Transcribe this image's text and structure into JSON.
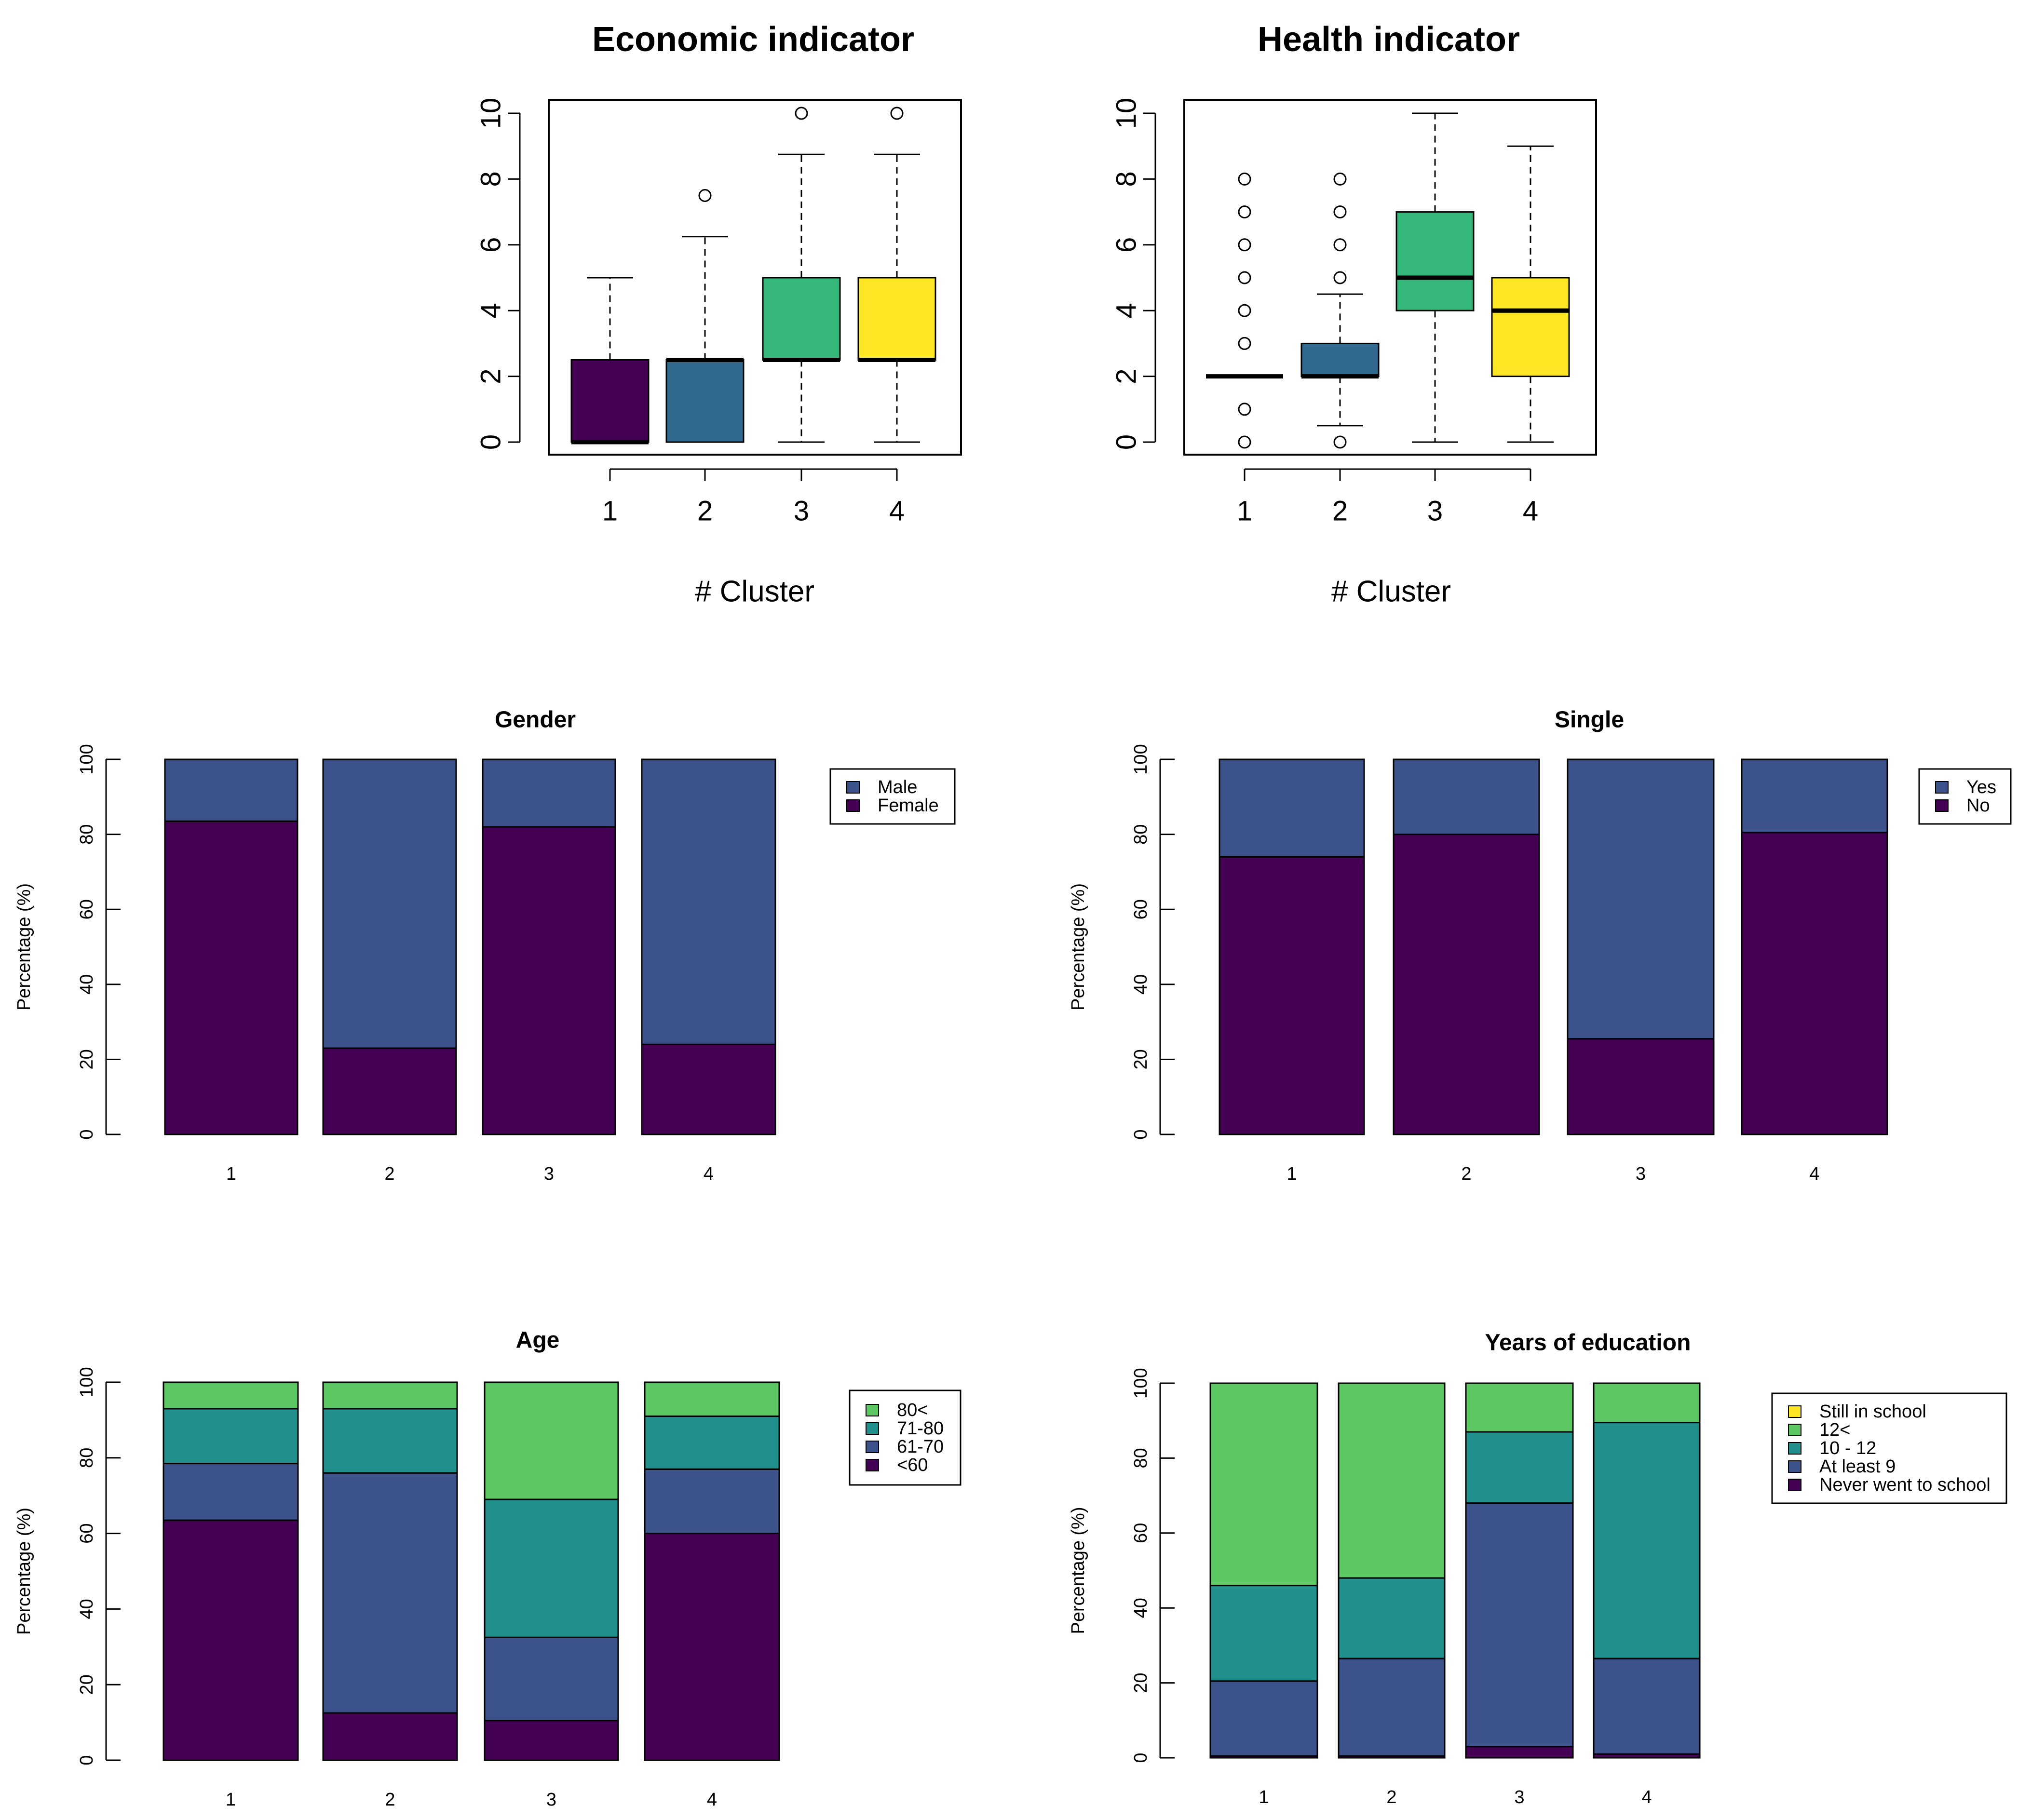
{
  "chart_data": [
    {
      "id": "economic",
      "type": "boxplot",
      "title": "Economic indicator",
      "xlabel": "# Cluster",
      "ylabel": "",
      "ylim": [
        0,
        10
      ],
      "yticks": [
        "0",
        "2",
        "4",
        "6",
        "8",
        "10"
      ],
      "categories": [
        "1",
        "2",
        "3",
        "4"
      ],
      "boxes": [
        {
          "category": "1",
          "lower_whisker": 0,
          "q1": 0,
          "median": 0,
          "q3": 2.5,
          "upper_whisker": 5,
          "outliers": [],
          "color": "#440154"
        },
        {
          "category": "2",
          "lower_whisker": 0,
          "q1": 0,
          "median": 2.5,
          "q3": 2.5,
          "upper_whisker": 6.25,
          "outliers": [
            7.5
          ],
          "color": "#31688E"
        },
        {
          "category": "3",
          "lower_whisker": 0,
          "q1": 2.5,
          "median": 2.5,
          "q3": 5,
          "upper_whisker": 8.75,
          "outliers": [
            10
          ],
          "color": "#35B779"
        },
        {
          "category": "4",
          "lower_whisker": 0,
          "q1": 2.5,
          "median": 2.5,
          "q3": 5,
          "upper_whisker": 8.75,
          "outliers": [
            10
          ],
          "color": "#FDE725"
        }
      ]
    },
    {
      "id": "health",
      "type": "boxplot",
      "title": "Health indicator",
      "xlabel": "# Cluster",
      "ylabel": "",
      "ylim": [
        0,
        10
      ],
      "yticks": [
        "0",
        "2",
        "4",
        "6",
        "8",
        "10"
      ],
      "categories": [
        "1",
        "2",
        "3",
        "4"
      ],
      "boxes": [
        {
          "category": "1",
          "lower_whisker": 2,
          "q1": 2,
          "median": 2,
          "q3": 2,
          "upper_whisker": 2,
          "outliers": [
            0,
            1,
            3,
            4,
            5,
            6,
            7,
            8
          ],
          "color": "#440154"
        },
        {
          "category": "2",
          "lower_whisker": 0.5,
          "q1": 2,
          "median": 2,
          "q3": 3,
          "upper_whisker": 4.5,
          "outliers": [
            0,
            5,
            6,
            7,
            8
          ],
          "color": "#31688E"
        },
        {
          "category": "3",
          "lower_whisker": 0,
          "q1": 4,
          "median": 5,
          "q3": 7,
          "upper_whisker": 10,
          "outliers": [],
          "color": "#35B779"
        },
        {
          "category": "4",
          "lower_whisker": 0,
          "q1": 2,
          "median": 4,
          "q3": 5,
          "upper_whisker": 9,
          "outliers": [],
          "color": "#FDE725"
        }
      ]
    },
    {
      "id": "gender",
      "type": "bar",
      "stacked": true,
      "title": "Gender",
      "xlabel": "",
      "ylabel": "Percentage (%)",
      "ylim": [
        0,
        100
      ],
      "yticks": [
        "0",
        "20",
        "40",
        "60",
        "80",
        "100"
      ],
      "categories": [
        "1",
        "2",
        "3",
        "4"
      ],
      "legend_position": "top-right",
      "series": [
        {
          "name": "Female",
          "color": "#440154",
          "values": [
            83.5,
            23,
            82,
            24
          ]
        },
        {
          "name": "Male",
          "color": "#3B528B",
          "values": [
            16.5,
            77,
            18,
            76
          ]
        }
      ]
    },
    {
      "id": "single",
      "type": "bar",
      "stacked": true,
      "title": "Single",
      "xlabel": "",
      "ylabel": "Percentage (%)",
      "ylim": [
        0,
        100
      ],
      "yticks": [
        "0",
        "20",
        "40",
        "60",
        "80",
        "100"
      ],
      "categories": [
        "1",
        "2",
        "3",
        "4"
      ],
      "legend_position": "top-right",
      "series": [
        {
          "name": "No",
          "color": "#440154",
          "values": [
            74,
            80,
            25.5,
            80.5
          ]
        },
        {
          "name": "Yes",
          "color": "#3B528B",
          "values": [
            26,
            20,
            74.5,
            19.5
          ]
        }
      ]
    },
    {
      "id": "age",
      "type": "bar",
      "stacked": true,
      "title": "Age",
      "xlabel": "",
      "ylabel": "Percentage (%)",
      "ylim": [
        0,
        100
      ],
      "yticks": [
        "0",
        "20",
        "40",
        "60",
        "80",
        "100"
      ],
      "categories": [
        "1",
        "2",
        "3",
        "4"
      ],
      "legend_position": "top-right",
      "series": [
        {
          "name": "<60",
          "color": "#440154",
          "values": [
            63.5,
            12.5,
            10.5,
            60
          ]
        },
        {
          "name": "61-70",
          "color": "#3B528B",
          "values": [
            15,
            63.5,
            22,
            17
          ]
        },
        {
          "name": "71-80",
          "color": "#21908C",
          "values": [
            14.5,
            17,
            36.5,
            14
          ]
        },
        {
          "name": "80<",
          "color": "#5DC863",
          "values": [
            7,
            7,
            31,
            9
          ]
        }
      ]
    },
    {
      "id": "education",
      "type": "bar",
      "stacked": true,
      "title": "Years of education",
      "xlabel": "",
      "ylabel": "Percentage (%)",
      "ylim": [
        0,
        100
      ],
      "yticks": [
        "0",
        "20",
        "40",
        "60",
        "80",
        "100"
      ],
      "categories": [
        "1",
        "2",
        "3",
        "4"
      ],
      "legend_position": "top-right",
      "series": [
        {
          "name": "Never went to school",
          "color": "#440154",
          "values": [
            0.5,
            0.5,
            3,
            1
          ]
        },
        {
          "name": "At least 9",
          "color": "#3B528B",
          "values": [
            20,
            26,
            65,
            25.5
          ]
        },
        {
          "name": "10 - 12",
          "color": "#21908C",
          "values": [
            25.5,
            21.5,
            19,
            63
          ]
        },
        {
          "name": "12<",
          "color": "#5DC863",
          "values": [
            54,
            52,
            13,
            10.5
          ]
        },
        {
          "name": "Still in school",
          "color": "#FDE725",
          "values": [
            0,
            0,
            0,
            0
          ]
        }
      ]
    }
  ]
}
